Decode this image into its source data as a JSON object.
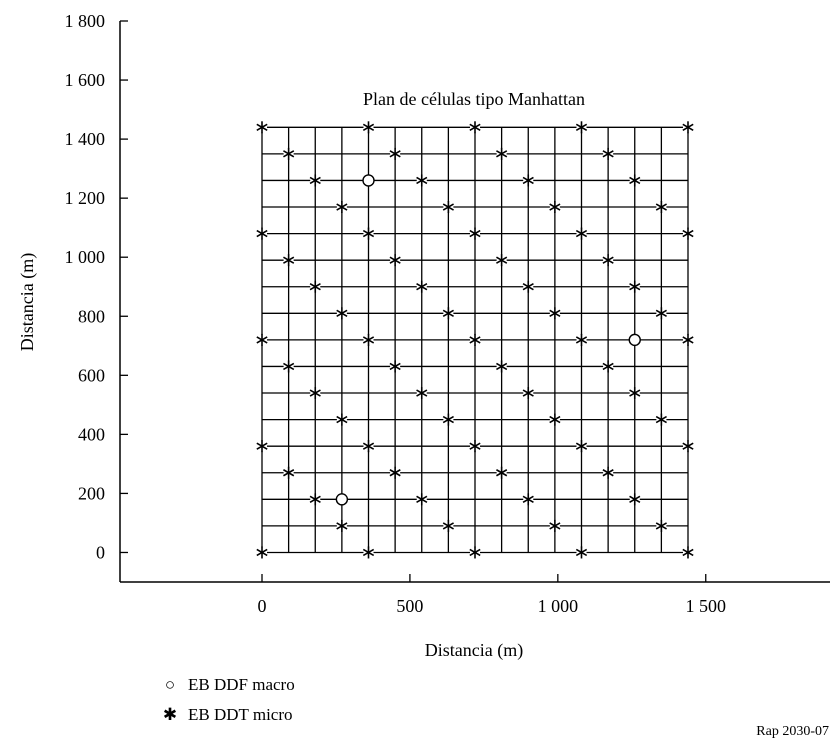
{
  "chart_data": {
    "type": "scatter",
    "title": "Plan de células tipo Manhattan",
    "xlabel": "Distancia (m)",
    "ylabel": "Distancia (m)",
    "xlim": [
      -480,
      1920
    ],
    "ylim": [
      -100,
      1800
    ],
    "xticks": [
      0,
      500,
      1000,
      1500
    ],
    "xtick_labels": [
      "0",
      "500",
      "1 000",
      "1 500"
    ],
    "yticks": [
      0,
      200,
      400,
      600,
      800,
      1000,
      1200,
      1400,
      1600,
      1800
    ],
    "ytick_labels": [
      "0",
      "200",
      "400",
      "600",
      "800",
      "1 000",
      "1 200",
      "1 400",
      "1 600",
      "1 800"
    ],
    "street_grid": {
      "from": 0,
      "to": 1440,
      "spacing": 90
    },
    "series": [
      {
        "name": "EB DDF macro",
        "marker": "circle",
        "points": [
          [
            270,
            180
          ],
          [
            360,
            1260
          ],
          [
            1260,
            720
          ]
        ]
      },
      {
        "name": "EB DDT micro",
        "marker": "asterisk",
        "points": [
          [
            0,
            0
          ],
          [
            360,
            0
          ],
          [
            720,
            0
          ],
          [
            1080,
            0
          ],
          [
            1440,
            0
          ],
          [
            270,
            90
          ],
          [
            630,
            90
          ],
          [
            990,
            90
          ],
          [
            1350,
            90
          ],
          [
            180,
            180
          ],
          [
            540,
            180
          ],
          [
            900,
            180
          ],
          [
            1260,
            180
          ],
          [
            90,
            270
          ],
          [
            450,
            270
          ],
          [
            810,
            270
          ],
          [
            1170,
            270
          ],
          [
            0,
            360
          ],
          [
            360,
            360
          ],
          [
            720,
            360
          ],
          [
            1080,
            360
          ],
          [
            1440,
            360
          ],
          [
            270,
            450
          ],
          [
            630,
            450
          ],
          [
            990,
            450
          ],
          [
            1350,
            450
          ],
          [
            180,
            540
          ],
          [
            540,
            540
          ],
          [
            900,
            540
          ],
          [
            1260,
            540
          ],
          [
            90,
            630
          ],
          [
            450,
            630
          ],
          [
            810,
            630
          ],
          [
            1170,
            630
          ],
          [
            0,
            720
          ],
          [
            360,
            720
          ],
          [
            720,
            720
          ],
          [
            1080,
            720
          ],
          [
            1440,
            720
          ],
          [
            270,
            810
          ],
          [
            630,
            810
          ],
          [
            990,
            810
          ],
          [
            1350,
            810
          ],
          [
            180,
            900
          ],
          [
            540,
            900
          ],
          [
            900,
            900
          ],
          [
            1260,
            900
          ],
          [
            90,
            990
          ],
          [
            450,
            990
          ],
          [
            810,
            990
          ],
          [
            1170,
            990
          ],
          [
            0,
            1080
          ],
          [
            360,
            1080
          ],
          [
            720,
            1080
          ],
          [
            1080,
            1080
          ],
          [
            1440,
            1080
          ],
          [
            270,
            1170
          ],
          [
            630,
            1170
          ],
          [
            990,
            1170
          ],
          [
            1350,
            1170
          ],
          [
            180,
            1260
          ],
          [
            540,
            1260
          ],
          [
            900,
            1260
          ],
          [
            1260,
            1260
          ],
          [
            90,
            1350
          ],
          [
            450,
            1350
          ],
          [
            810,
            1350
          ],
          [
            1170,
            1350
          ],
          [
            0,
            1440
          ],
          [
            360,
            1440
          ],
          [
            720,
            1440
          ],
          [
            1080,
            1440
          ],
          [
            1440,
            1440
          ]
        ]
      }
    ],
    "legend_position": "bottom-left"
  },
  "legend": {
    "macro_label": "EB DDF macro",
    "micro_label": "EB DDT micro",
    "macro_symbol": "○",
    "micro_symbol": "✱"
  },
  "reference": "Rap 2030-07"
}
